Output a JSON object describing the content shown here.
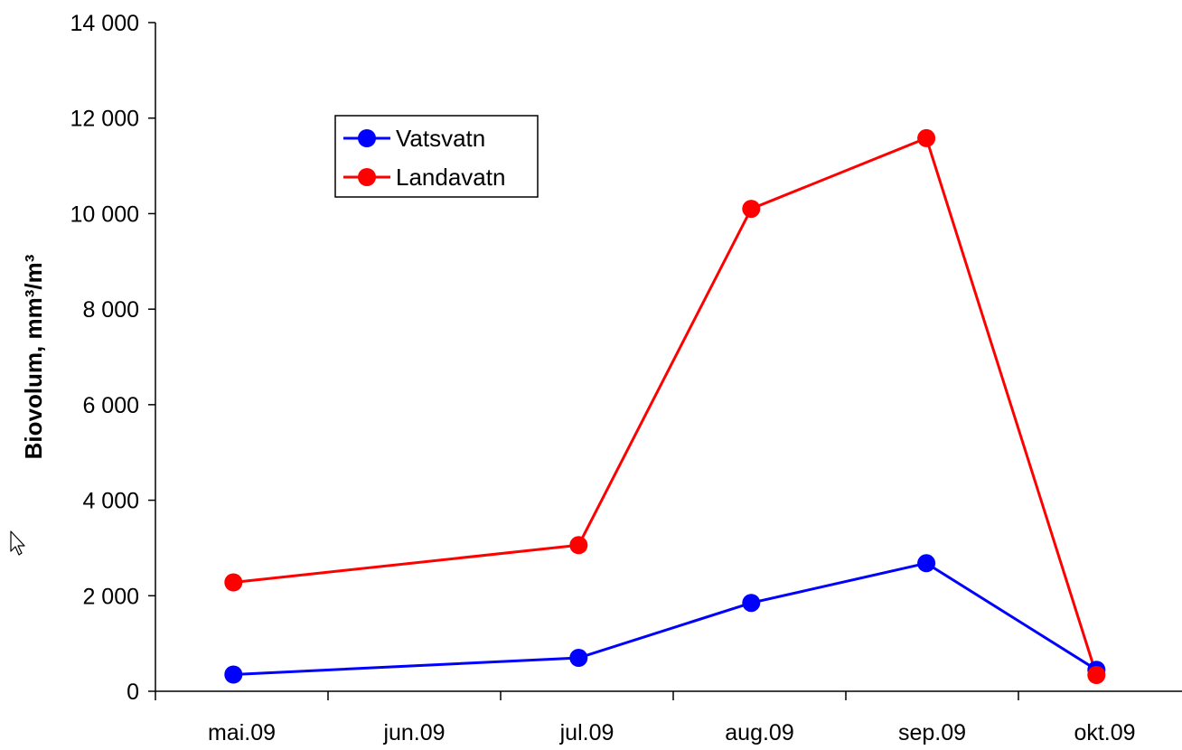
{
  "chart_data": {
    "type": "line",
    "categories": [
      "mai.09",
      "jun.09",
      "jul.09",
      "aug.09",
      "sep.09",
      "okt.09"
    ],
    "ylabel": "Biovolum, mm³/m³",
    "ylim": [
      0,
      14000
    ],
    "yticks": [
      0,
      2000,
      4000,
      6000,
      8000,
      10000,
      12000,
      14000
    ],
    "ytick_labels": [
      "0",
      "2 000",
      "4 000",
      "6 000",
      "8 000",
      "10 000",
      "12 000",
      "14 000"
    ],
    "grid": false,
    "legend_position": "top-left",
    "series": [
      {
        "name": "Vatsvatn",
        "color": "#0000ff",
        "points": [
          {
            "x": "2009-05-15",
            "y": 350
          },
          {
            "x": "2009-07-15",
            "y": 700
          },
          {
            "x": "2009-08-15",
            "y": 1850
          },
          {
            "x": "2009-09-15",
            "y": 2680
          },
          {
            "x": "2009-10-15",
            "y": 450
          }
        ]
      },
      {
        "name": "Landavatn",
        "color": "#ff0000",
        "points": [
          {
            "x": "2009-05-15",
            "y": 2280
          },
          {
            "x": "2009-07-15",
            "y": 3060
          },
          {
            "x": "2009-08-15",
            "y": 10100
          },
          {
            "x": "2009-09-15",
            "y": 11580
          },
          {
            "x": "2009-10-15",
            "y": 340
          }
        ]
      }
    ]
  }
}
